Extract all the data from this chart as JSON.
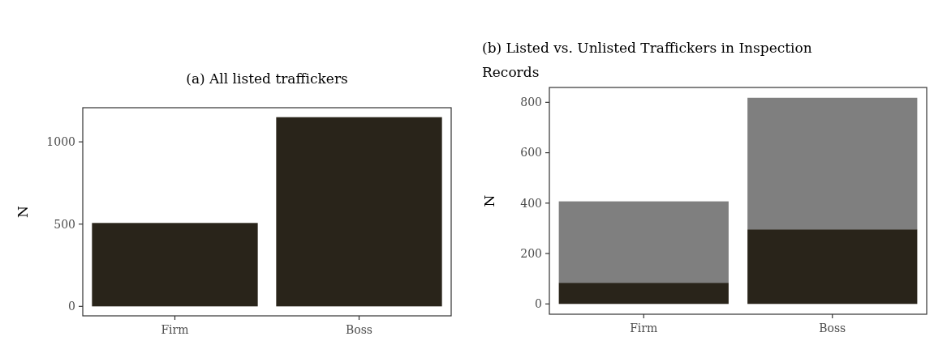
{
  "chart_data": [
    {
      "type": "bar",
      "title": "(a) All listed traffickers",
      "ylabel": "N",
      "categories": [
        "Firm",
        "Boss"
      ],
      "series": [
        {
          "color": "#29241a",
          "values": [
            507,
            1150
          ]
        }
      ],
      "ylim": [
        -57.5,
        1207.5
      ],
      "yticks": [
        0,
        500,
        1000
      ],
      "grid": false
    },
    {
      "type": "bar",
      "title": "(b) Listed vs.  Unlisted Traffickers in Inspection Records",
      "ylabel": "N",
      "categories": [
        "Firm",
        "Boss"
      ],
      "stacked": true,
      "series": [
        {
          "color": "#29241a",
          "values": [
            84,
            296
          ]
        },
        {
          "color": "#7f7f7f",
          "values": [
            323,
            522
          ]
        }
      ],
      "ylim": [
        -40.9,
        859
      ],
      "yticks": [
        0,
        200,
        400,
        600,
        800
      ],
      "grid": false
    }
  ]
}
